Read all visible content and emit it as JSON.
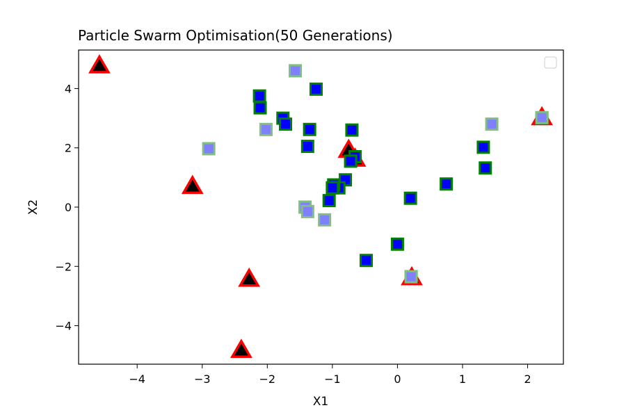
{
  "chart_data": {
    "type": "scatter",
    "title": "Particle Swarm Optimisation(50 Generations)",
    "xlabel": "X1",
    "ylabel": "X2",
    "xlim": [
      -4.9,
      2.55
    ],
    "ylim": [
      -5.3,
      5.3
    ],
    "xticks": [
      -4,
      -3,
      -2,
      -1,
      0,
      1,
      2
    ],
    "yticks": [
      -4,
      -2,
      0,
      2,
      4
    ],
    "grid": false,
    "legend": {
      "position": "top-right",
      "entries": []
    },
    "series": [
      {
        "marker": "triangle",
        "face_color": "#000000",
        "edge_color": "#ff0000",
        "points": [
          {
            "x": -4.58,
            "y": 4.75
          },
          {
            "x": -3.15,
            "y": 0.68
          },
          {
            "x": -2.28,
            "y": -2.45
          },
          {
            "x": -2.4,
            "y": -4.85
          },
          {
            "x": -0.75,
            "y": 1.9
          },
          {
            "x": -0.65,
            "y": 1.6
          },
          {
            "x": 0.22,
            "y": -2.4
          },
          {
            "x": 2.22,
            "y": 3.0
          }
        ]
      },
      {
        "marker": "square",
        "face_color": "#0000ff",
        "edge_color": "#008000",
        "points": [
          {
            "x": -2.12,
            "y": 3.75
          },
          {
            "x": -2.11,
            "y": 3.35
          },
          {
            "x": -1.76,
            "y": 3.0
          },
          {
            "x": -1.72,
            "y": 2.8
          },
          {
            "x": -1.35,
            "y": 2.62
          },
          {
            "x": -1.38,
            "y": 2.05
          },
          {
            "x": -1.25,
            "y": 3.98
          },
          {
            "x": -0.7,
            "y": 2.6
          },
          {
            "x": -0.65,
            "y": 1.7
          },
          {
            "x": -0.72,
            "y": 1.55
          },
          {
            "x": -0.8,
            "y": 0.92
          },
          {
            "x": -0.9,
            "y": 0.65
          },
          {
            "x": -0.98,
            "y": 0.75
          },
          {
            "x": -1.0,
            "y": 0.65
          },
          {
            "x": -1.05,
            "y": 0.22
          },
          {
            "x": -0.48,
            "y": -1.8
          },
          {
            "x": 0.0,
            "y": -1.25
          },
          {
            "x": 0.2,
            "y": 0.3
          },
          {
            "x": 0.75,
            "y": 0.78
          },
          {
            "x": 1.32,
            "y": 2.02
          },
          {
            "x": 1.35,
            "y": 1.32
          },
          {
            "x": 0.21,
            "y": -2.35
          },
          {
            "x": 2.22,
            "y": 3.0
          }
        ]
      },
      {
        "marker": "square",
        "face_color": "#8080ff",
        "edge_color": "#7fbf7f",
        "points": [
          {
            "x": -1.57,
            "y": 4.6
          },
          {
            "x": -2.02,
            "y": 2.62
          },
          {
            "x": -2.9,
            "y": 1.97
          },
          {
            "x": -1.42,
            "y": 0.0
          },
          {
            "x": -1.38,
            "y": -0.15
          },
          {
            "x": -1.12,
            "y": -0.43
          },
          {
            "x": 1.45,
            "y": 2.8
          },
          {
            "x": 2.22,
            "y": 3.02
          },
          {
            "x": 0.21,
            "y": -2.35
          }
        ]
      }
    ]
  }
}
